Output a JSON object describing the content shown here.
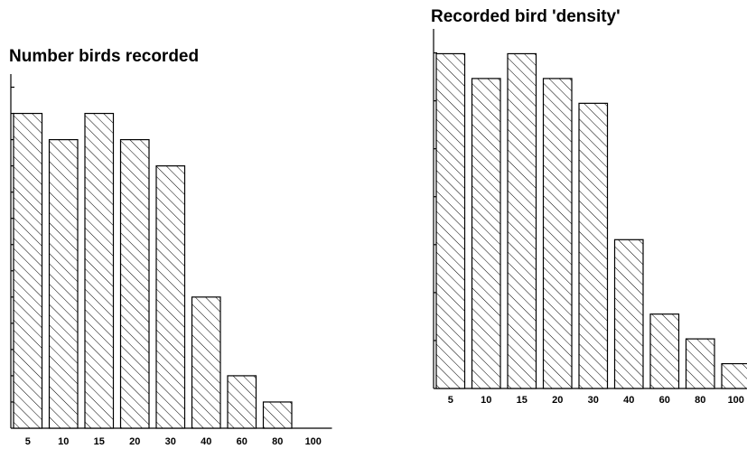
{
  "chart_data": [
    {
      "type": "bar",
      "title": "Number birds recorded",
      "categories": [
        "5",
        "10",
        "15",
        "20",
        "30",
        "40",
        "60",
        "80",
        "100"
      ],
      "values": [
        12,
        11,
        12,
        11,
        10,
        5,
        2,
        1,
        0
      ],
      "ylim": [
        0,
        13.5
      ],
      "xlabel": "",
      "ylabel": "",
      "grid": false,
      "legend": "none",
      "pattern": "diagonal-hatch"
    },
    {
      "type": "bar",
      "title": "Recorded bird 'density'",
      "categories": [
        "5",
        "10",
        "15",
        "20",
        "30",
        "40",
        "60",
        "80",
        "100"
      ],
      "values": [
        6.75,
        6.25,
        6.75,
        6.25,
        5.75,
        3,
        1.5,
        1,
        0.5
      ],
      "ylim": [
        0,
        7.25
      ],
      "xlabel": "",
      "ylabel": "",
      "grid": false,
      "legend": "none",
      "pattern": "diagonal-hatch"
    }
  ]
}
